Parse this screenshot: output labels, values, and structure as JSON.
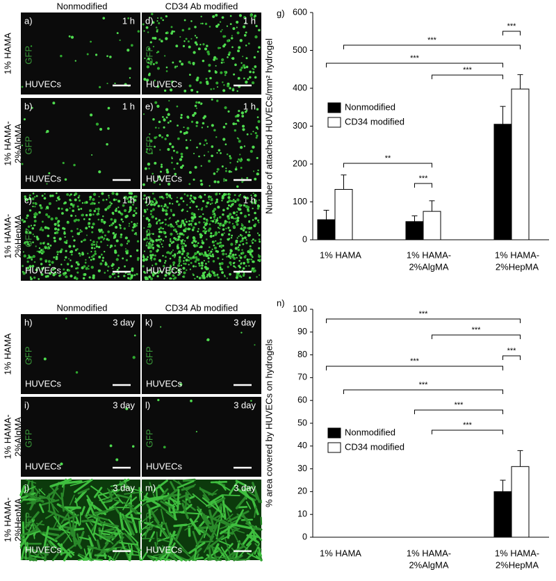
{
  "panels": {
    "top": {
      "headers": [
        "Nonmodified",
        "CD34 Ab modified"
      ],
      "rows": [
        [
          "1% HAMA"
        ],
        [
          "1% HAMA-",
          "2%AlgMA"
        ],
        [
          "1% HAMA-",
          "2%HepMA"
        ]
      ],
      "cells": [
        [
          {
            "label": "a)",
            "time": "1 h",
            "marker": "GFP",
            "cell": "HUVECs"
          },
          {
            "label": "d)",
            "time": "1 h",
            "marker": "GFP",
            "cell": "HUVECs"
          }
        ],
        [
          {
            "label": "b)",
            "time": "1 h",
            "marker": "GFP",
            "cell": "HUVECs"
          },
          {
            "label": "e)",
            "time": "1 h",
            "marker": "GFP",
            "cell": "HUVECs"
          }
        ],
        [
          {
            "label": "c)",
            "time": "1 h",
            "marker": "GFP",
            "cell": "HUVECs"
          },
          {
            "label": "f)",
            "time": "1 h",
            "marker": "GFP",
            "cell": "HUVECs"
          }
        ]
      ]
    },
    "bottom": {
      "headers": [
        "Nonmodified",
        "CD34 Ab modified"
      ],
      "rows": [
        [
          "1% HAMA"
        ],
        [
          "1% HAMA-",
          "2%AlgMA"
        ],
        [
          "1% HAMA-",
          "2%HepMA"
        ]
      ],
      "cells": [
        [
          {
            "label": "h)",
            "time": "3 day",
            "marker": "GFP",
            "cell": "HUVECs"
          },
          {
            "label": "k)",
            "time": "3 day",
            "marker": "GFP",
            "cell": "HUVECs"
          }
        ],
        [
          {
            "label": "i)",
            "time": "3 day",
            "marker": "GFP",
            "cell": "HUVECs"
          },
          {
            "label": "l)",
            "time": "3 day",
            "marker": "GFP",
            "cell": "HUVECs"
          }
        ],
        [
          {
            "label": "j)",
            "time": "3 day",
            "marker": "GFP",
            "cell": "HUVECs"
          },
          {
            "label": "m)",
            "time": "3 day",
            "marker": "GFP",
            "cell": "HUVECs"
          }
        ]
      ]
    }
  },
  "chart_data": [
    {
      "type": "bar",
      "label": "g)",
      "y_label": "Number of attached HUVECs/mm² hydrogel",
      "categories": [
        [
          "1% HAMA"
        ],
        [
          "1% HAMA-",
          "2%AlgMA"
        ],
        [
          "1% HAMA-",
          "2%HepMA"
        ]
      ],
      "series": [
        {
          "name": "Nonmodified",
          "color": "#000000",
          "values": [
            53,
            48,
            305
          ],
          "errors": [
            25,
            15,
            47
          ]
        },
        {
          "name": "CD34 modified",
          "color": "#ffffff",
          "values": [
            133,
            75,
            398
          ],
          "errors": [
            38,
            28,
            38
          ]
        }
      ],
      "ylim": [
        0,
        600
      ],
      "yticks": [
        0,
        100,
        200,
        300,
        400,
        500,
        600
      ],
      "legend": "middle-left",
      "brackets": [
        {
          "from": [
            2,
            0
          ],
          "to": [
            2,
            1
          ],
          "label": "***"
        },
        {
          "from": [
            0,
            1
          ],
          "to": [
            2,
            1
          ],
          "label": "***"
        },
        {
          "from": [
            0,
            0
          ],
          "to": [
            2,
            0
          ],
          "label": "***"
        },
        {
          "from": [
            1,
            1
          ],
          "to": [
            2,
            0
          ],
          "label": "***"
        },
        {
          "from": [
            0,
            1
          ],
          "to": [
            1,
            1
          ],
          "label": "**"
        },
        {
          "from": [
            1,
            0
          ],
          "to": [
            1,
            1
          ],
          "label": "***"
        }
      ]
    },
    {
      "type": "bar",
      "label": "n)",
      "y_label": "% area covered by HUVECs on hydrogels",
      "categories": [
        [
          "1% HAMA"
        ],
        [
          "1% HAMA-",
          "2%AlgMA"
        ],
        [
          "1% HAMA-",
          "2%HepMA"
        ]
      ],
      "series": [
        {
          "name": "Nonmodified",
          "color": "#000000",
          "values": [
            0,
            0,
            20
          ],
          "errors": [
            0,
            0,
            5
          ]
        },
        {
          "name": "CD34 modified",
          "color": "#ffffff",
          "values": [
            0,
            0,
            31
          ],
          "errors": [
            0,
            0,
            7
          ]
        }
      ],
      "ylim": [
        0,
        100
      ],
      "yticks": [
        0,
        10,
        20,
        30,
        40,
        50,
        60,
        70,
        80,
        90,
        100
      ],
      "legend": "lower-left",
      "brackets": [
        {
          "from": [
            0,
            0
          ],
          "to": [
            2,
            1
          ],
          "label": "***"
        },
        {
          "from": [
            1,
            1
          ],
          "to": [
            2,
            1
          ],
          "label": "***"
        },
        {
          "from": [
            2,
            0
          ],
          "to": [
            2,
            1
          ],
          "label": "***"
        },
        {
          "from": [
            0,
            0
          ],
          "to": [
            2,
            0
          ],
          "label": "***"
        },
        {
          "from": [
            0,
            1
          ],
          "to": [
            2,
            0
          ],
          "label": "***"
        },
        {
          "from": [
            1,
            0
          ],
          "to": [
            2,
            0
          ],
          "label": "***"
        },
        {
          "from": [
            1,
            1
          ],
          "to": [
            2,
            0
          ],
          "label": "***"
        }
      ]
    }
  ]
}
